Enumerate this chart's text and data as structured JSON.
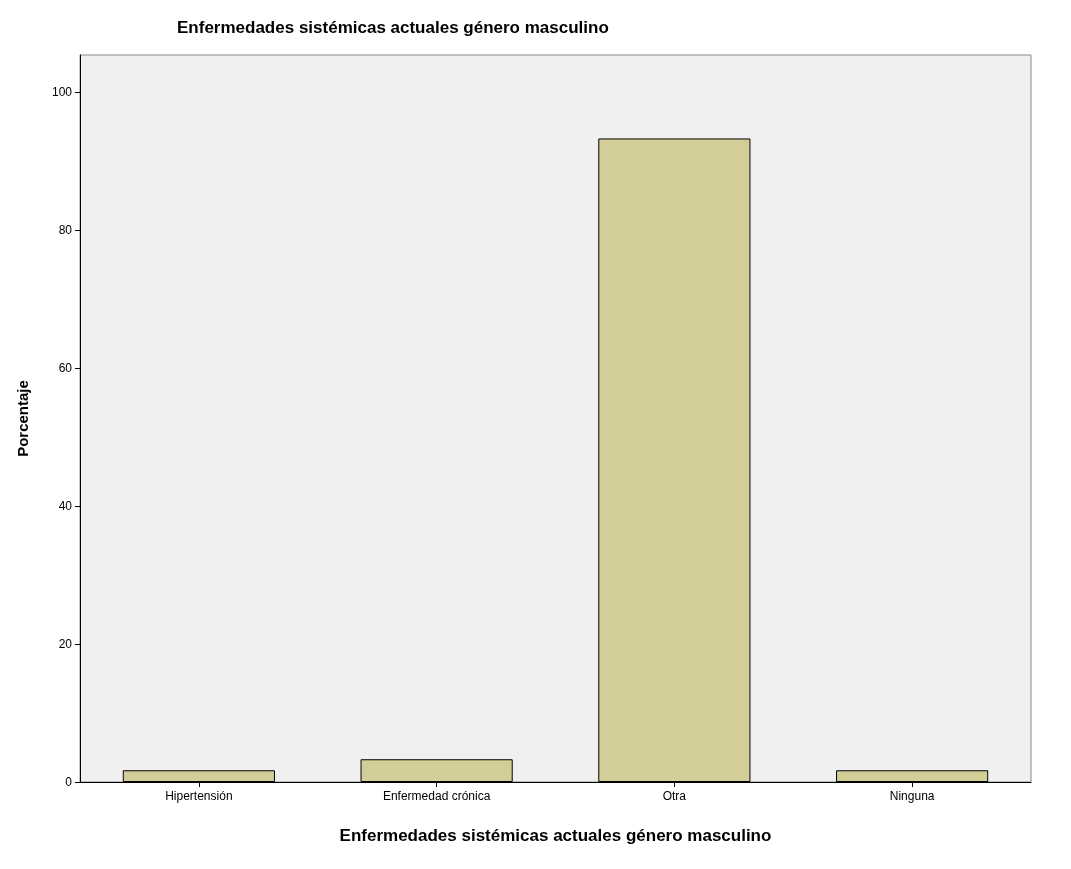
{
  "chart_data": {
    "type": "bar",
    "title": "Enfermedades sistémicas actuales género masculino",
    "xlabel": "Enfermedades sistémicas actuales género masculino",
    "ylabel": "Porcentaje",
    "categories": [
      "Hipertensión",
      "Enfermedad crónica",
      "Otra",
      "Ninguna"
    ],
    "values": [
      1.7,
      3.3,
      93.3,
      1.7
    ],
    "color": "#d3ce97",
    "ylim": [
      0,
      105.4
    ],
    "yticks": [
      0,
      20,
      40,
      60,
      80,
      100
    ],
    "grid": false
  }
}
